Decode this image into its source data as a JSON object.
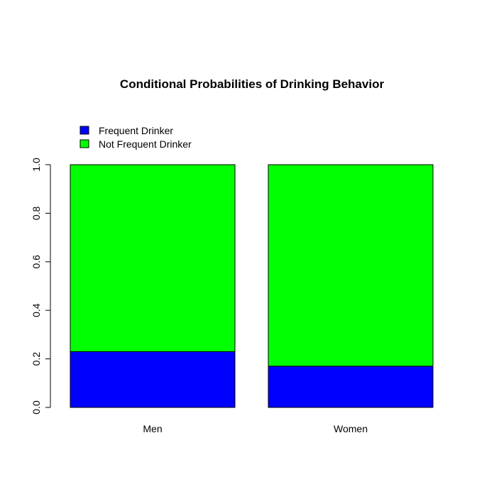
{
  "chart_data": {
    "type": "bar",
    "stacked": true,
    "title": "Conditional Probabilities of Drinking Behavior",
    "xlabel": "",
    "ylabel": "",
    "categories": [
      "Men",
      "Women"
    ],
    "series": [
      {
        "name": "Frequent Drinker",
        "values": [
          0.23,
          0.17
        ],
        "color": "#0000ff"
      },
      {
        "name": "Not Frequent Drinker",
        "values": [
          0.77,
          0.83
        ],
        "color": "#00ff00"
      }
    ],
    "ylim": [
      0,
      1
    ],
    "yticks": [
      "0.0",
      "0.2",
      "0.4",
      "0.6",
      "0.8",
      "1.0"
    ],
    "legend_position": "top-left",
    "grid": false
  }
}
